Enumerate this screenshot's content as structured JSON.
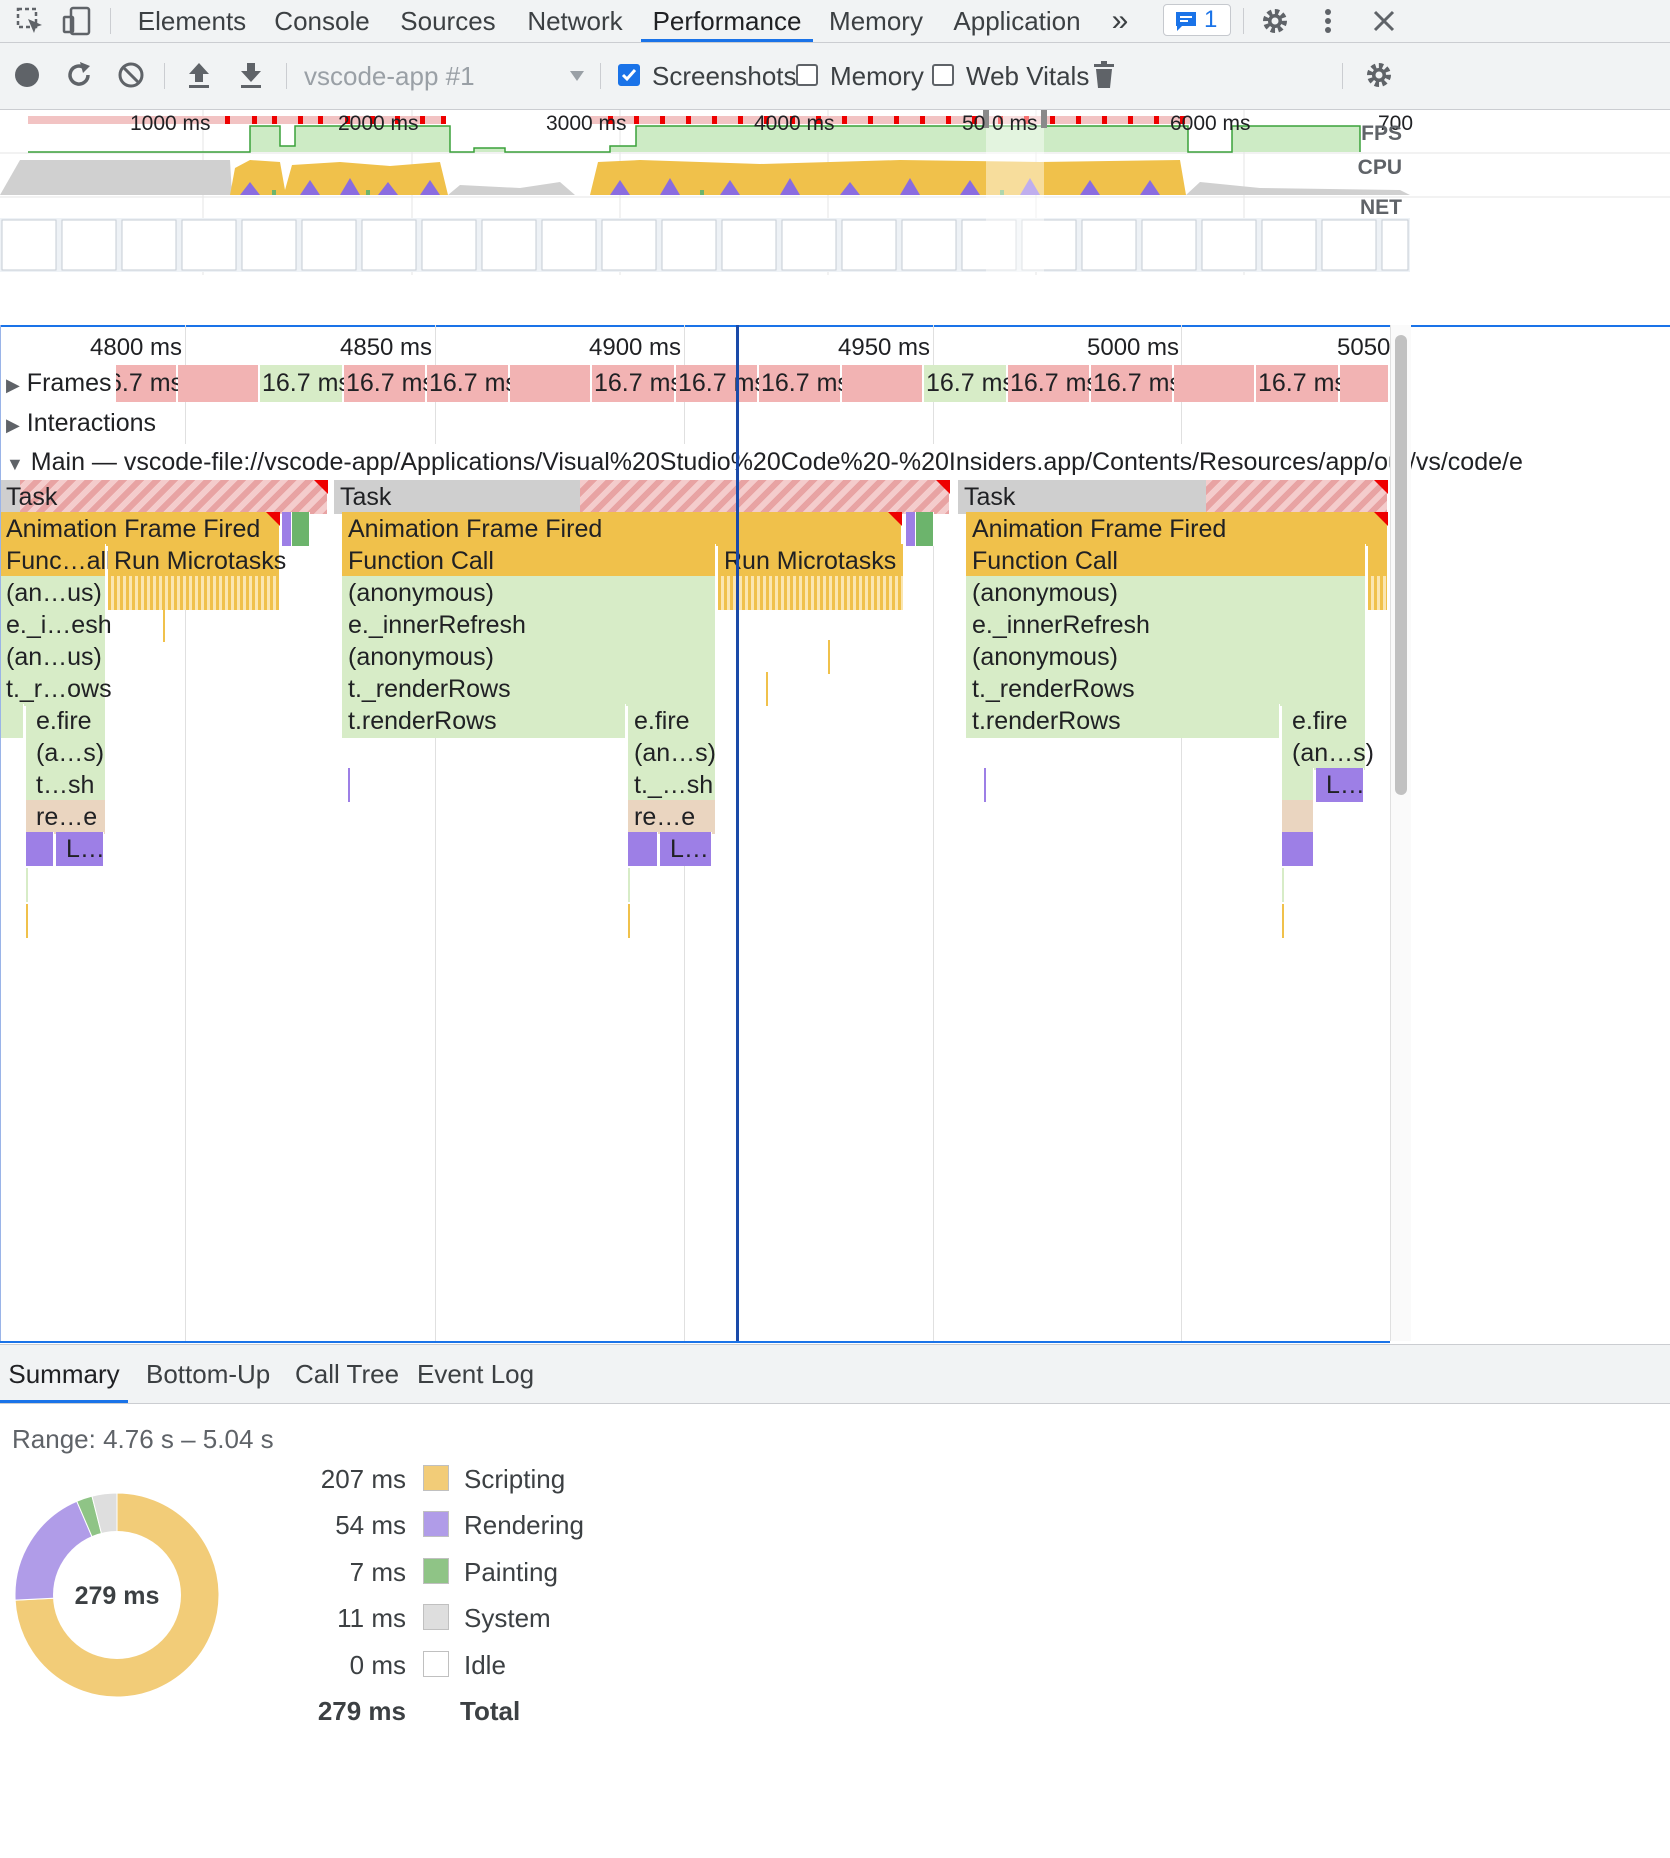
{
  "tabs": {
    "elements": "Elements",
    "console": "Console",
    "sources": "Sources",
    "network": "Network",
    "performance": "Performance",
    "memory": "Memory",
    "application": "Application",
    "more": "»",
    "issues_count": "1"
  },
  "toolbar": {
    "profile_select": "vscode-app #1",
    "screenshots_label": "Screenshots",
    "screenshots_checked": true,
    "memory_label": "Memory",
    "memory_checked": false,
    "webvitals_label": "Web Vitals",
    "webvitals_checked": false
  },
  "overview": {
    "ticks": [
      "1000 ms",
      "2000 ms",
      "3000 ms",
      "4000 ms",
      "50",
      "0 ms",
      "6000 ms",
      "700"
    ],
    "labels": {
      "fps": "FPS",
      "cpu": "CPU",
      "net": "NET"
    }
  },
  "ruler": [
    "4800 ms",
    "4850 ms",
    "4900 ms",
    "4950 ms",
    "5000 ms",
    "5050"
  ],
  "frames": {
    "label": "Frames",
    "items": [
      "6.7 ms",
      "16.7 ms",
      "16.7 ms",
      "16.7 ms",
      "16.7 ms",
      "16.7 ms",
      "16.7 ms",
      "16.7 ms",
      "16.7 ms",
      "16.7 ms",
      "16.7 ms"
    ]
  },
  "interactions": {
    "label": "Interactions"
  },
  "main": {
    "label": "Main — vscode-file://vscode-app/Applications/Visual%20Studio%20Code%20-%20Insiders.app/Contents/Resources/app/out/vs/code/e"
  },
  "flame": {
    "task": "Task",
    "aff": "Animation Frame Fired",
    "func_short": "Func…all",
    "run_micro": "Run Microtasks",
    "func_call": "Function Call",
    "anon_short": "(an…us)",
    "anon": "(anonymous)",
    "inner_short": "e._i…esh",
    "inner": "e._innerRefresh",
    "render_short": "t._r…ows",
    "render": "t._renderRows",
    "render_rows": "t.renderRows",
    "efire": "e.fire",
    "as_short": "(a…s)",
    "ans_short": "(an…s)",
    "tsh_short": "t…sh",
    "t_sh_short": "t._…sh",
    "ree_short": "re…e",
    "l_short": "L…"
  },
  "bottom": {
    "tabs": {
      "summary": "Summary",
      "bottomup": "Bottom-Up",
      "calltree": "Call Tree",
      "eventlog": "Event Log"
    },
    "range": "Range: 4.76 s – 5.04 s",
    "total_center": "279 ms",
    "legend": [
      {
        "value": "207 ms",
        "label": "Scripting",
        "color": "#f2cc78"
      },
      {
        "value": "54 ms",
        "label": "Rendering",
        "color": "#b09ce8"
      },
      {
        "value": "7 ms",
        "label": "Painting",
        "color": "#8fc486"
      },
      {
        "value": "11 ms",
        "label": "System",
        "color": "#dedede"
      },
      {
        "value": "0 ms",
        "label": "Idle",
        "color": "#ffffff"
      }
    ],
    "total": {
      "value": "279 ms",
      "label": "Total"
    }
  }
}
